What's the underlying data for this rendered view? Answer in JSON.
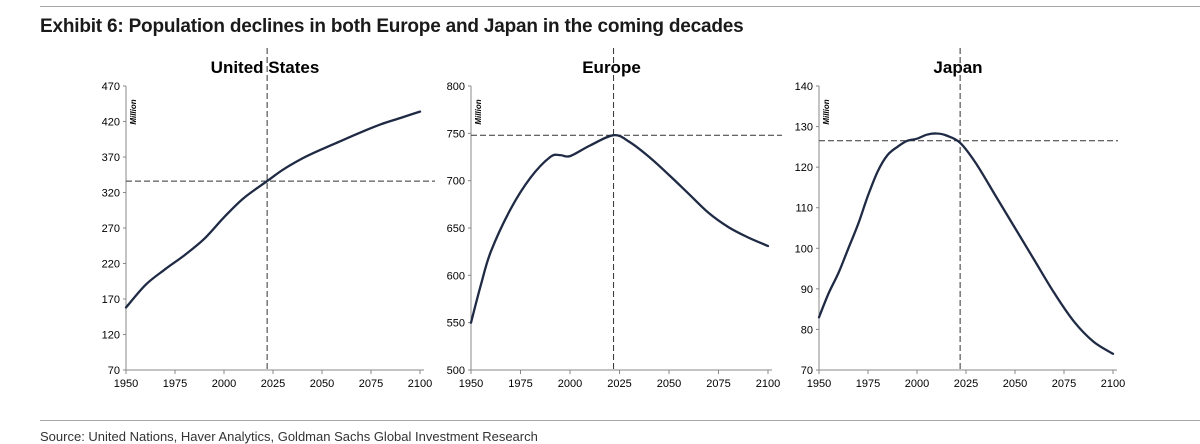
{
  "exhibit": {
    "title": "Exhibit 6: Population declines in both Europe and Japan in the coming decades",
    "source": "Source: United Nations, Haver Analytics, Goldman Sachs Global Investment Research"
  },
  "colors": {
    "line": "#1f2a44",
    "reference": "#333333",
    "text": "#000000",
    "rule": "#a7a7a7"
  },
  "chart_data": [
    {
      "type": "line",
      "title": "United States",
      "ylabel": "Million",
      "xlim": [
        1950,
        2100
      ],
      "ylim": [
        70,
        470
      ],
      "x_ticks": [
        1950,
        1975,
        2000,
        2025,
        2050,
        2075,
        2100
      ],
      "y_ticks": [
        70,
        120,
        170,
        220,
        270,
        320,
        370,
        420,
        470
      ],
      "reference": {
        "x": 2022,
        "y": 336
      },
      "series": [
        {
          "name": "United States",
          "x": [
            1950,
            1960,
            1970,
            1980,
            1990,
            2000,
            2010,
            2022,
            2030,
            2040,
            2050,
            2060,
            2070,
            2080,
            2090,
            2100
          ],
          "values": [
            158,
            190,
            212,
            232,
            255,
            285,
            312,
            336,
            352,
            368,
            381,
            393,
            405,
            416,
            425,
            434
          ]
        }
      ]
    },
    {
      "type": "line",
      "title": "Europe",
      "ylabel": "Million",
      "xlim": [
        1950,
        2100
      ],
      "ylim": [
        500,
        800
      ],
      "x_ticks": [
        1950,
        1975,
        2000,
        2025,
        2050,
        2075,
        2100
      ],
      "y_ticks": [
        500,
        550,
        600,
        650,
        700,
        750,
        800
      ],
      "reference": {
        "x": 2022,
        "y": 748
      },
      "series": [
        {
          "name": "Europe",
          "x": [
            1950,
            1955,
            1960,
            1970,
            1980,
            1990,
            1995,
            2000,
            2010,
            2022,
            2030,
            2040,
            2050,
            2060,
            2070,
            2080,
            2090,
            2100
          ],
          "values": [
            550,
            590,
            625,
            670,
            703,
            725,
            727,
            726,
            737,
            748,
            741,
            725,
            706,
            686,
            666,
            651,
            640,
            631
          ]
        }
      ]
    },
    {
      "type": "line",
      "title": "Japan",
      "ylabel": "Million",
      "xlim": [
        1950,
        2100
      ],
      "ylim": [
        70,
        140
      ],
      "x_ticks": [
        1950,
        1975,
        2000,
        2025,
        2050,
        2075,
        2100
      ],
      "y_ticks": [
        70,
        80,
        90,
        100,
        110,
        120,
        130,
        140
      ],
      "reference": {
        "x": 2022,
        "y": 126.5
      },
      "series": [
        {
          "name": "Japan",
          "x": [
            1950,
            1955,
            1960,
            1965,
            1970,
            1975,
            1980,
            1985,
            1990,
            1995,
            2000,
            2005,
            2010,
            2015,
            2022,
            2030,
            2040,
            2050,
            2060,
            2070,
            2080,
            2090,
            2100
          ],
          "values": [
            83,
            89,
            94,
            100,
            106,
            113,
            119,
            123,
            125,
            126.5,
            127,
            128,
            128.3,
            127.8,
            126,
            121,
            113,
            105,
            97,
            89,
            82,
            77,
            74
          ]
        }
      ]
    }
  ]
}
